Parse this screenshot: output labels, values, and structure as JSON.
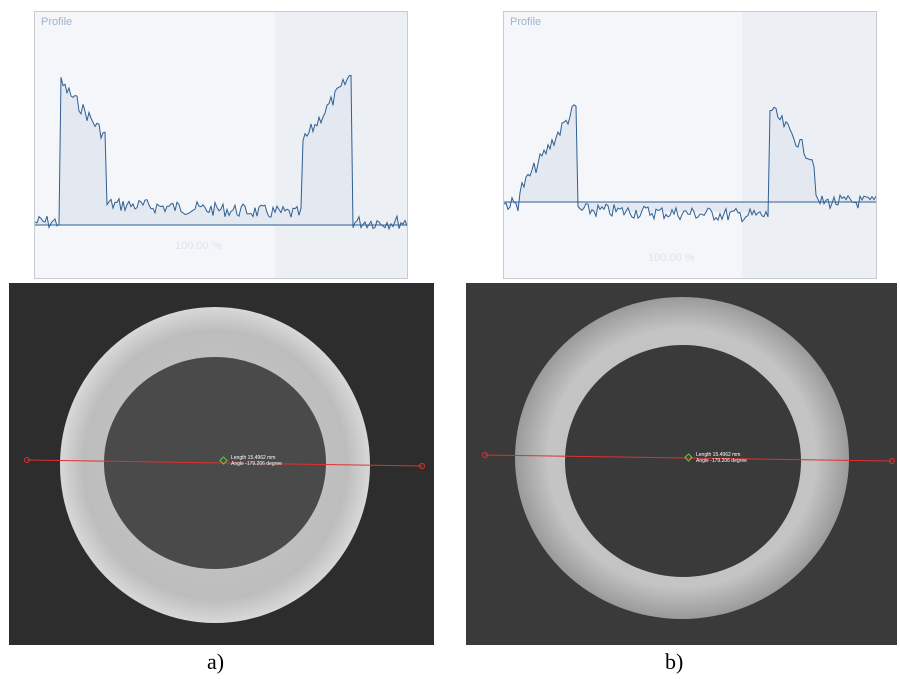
{
  "panels": [
    {
      "profile_title": "Profile",
      "profile_percent": "100.00 %",
      "measure_length": "Length 15.4962 mm",
      "measure_angle": "Angle -179.206 degree",
      "caption": "a)"
    },
    {
      "profile_title": "Profile",
      "profile_percent": "100.00 %",
      "measure_length": "Length 15.4962 mm",
      "measure_angle": "Angle -179.206 degree",
      "caption": "b)"
    }
  ],
  "colors": {
    "profile_line": "#2f5f91",
    "profile_fill": "#e3e8f1",
    "measure_line": "#e03030",
    "marker": "#66cc44"
  }
}
